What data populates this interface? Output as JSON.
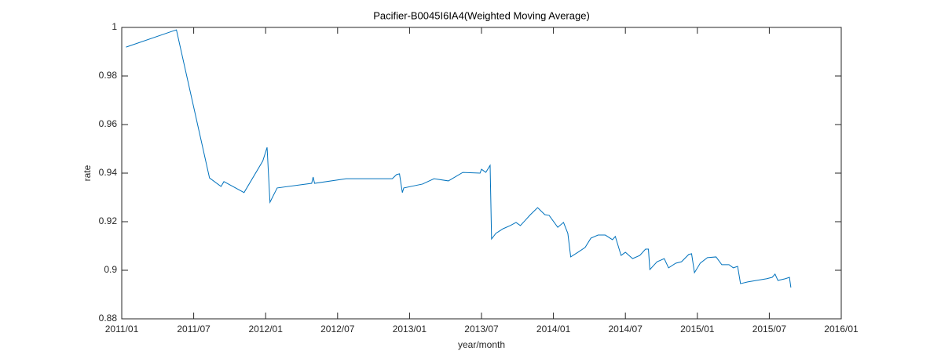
{
  "chart_data": {
    "type": "line",
    "title": "Pacifier-B0045I6IA4(Weighted Moving Average)",
    "x_label": "year/month",
    "y_label": "rate",
    "color": "#0072bd",
    "x": [
      2011.03,
      2011.35,
      2011.38,
      2011.61,
      2011.69,
      2011.71,
      2011.85,
      2011.98,
      2012.01,
      2012.03,
      2012.08,
      2012.32,
      2012.33,
      2012.34,
      2012.56,
      2012.88,
      2012.91,
      2012.93,
      2012.95,
      2012.96,
      2013.09,
      2013.17,
      2013.27,
      2013.37,
      2013.49,
      2013.5,
      2013.53,
      2013.56,
      2013.57,
      2013.6,
      2013.65,
      2013.7,
      2013.74,
      2013.77,
      2013.8,
      2013.84,
      2013.89,
      2013.94,
      2013.97,
      2014.03,
      2014.07,
      2014.1,
      2014.12,
      2014.17,
      2014.22,
      2014.26,
      2014.31,
      2014.36,
      2014.41,
      2014.43,
      2014.47,
      2014.5,
      2014.55,
      2014.6,
      2014.64,
      2014.66,
      2014.67,
      2014.72,
      2014.77,
      2014.8,
      2014.85,
      2014.89,
      2014.94,
      2014.96,
      2014.98,
      2015.02,
      2015.07,
      2015.13,
      2015.17,
      2015.22,
      2015.25,
      2015.28,
      2015.3,
      2015.35,
      2015.41,
      2015.48,
      2015.52,
      2015.54,
      2015.56,
      2015.61,
      2015.64,
      2015.65
    ],
    "values": [
      0.9919,
      0.9984,
      0.999,
      0.938,
      0.9345,
      0.9365,
      0.932,
      0.945,
      0.9506,
      0.928,
      0.9339,
      0.9358,
      0.9384,
      0.9358,
      0.9377,
      0.9377,
      0.9394,
      0.9397,
      0.932,
      0.9339,
      0.9355,
      0.9377,
      0.9368,
      0.9403,
      0.94,
      0.9416,
      0.9403,
      0.9432,
      0.9129,
      0.9152,
      0.9171,
      0.9184,
      0.9197,
      0.9184,
      0.9203,
      0.9229,
      0.9258,
      0.9229,
      0.9226,
      0.9177,
      0.9197,
      0.9152,
      0.9055,
      0.9074,
      0.9094,
      0.9132,
      0.9145,
      0.9145,
      0.9126,
      0.9139,
      0.9061,
      0.9074,
      0.9048,
      0.9061,
      0.9087,
      0.9087,
      0.9003,
      0.9035,
      0.9048,
      0.901,
      0.9029,
      0.9035,
      0.9065,
      0.9068,
      0.899,
      0.9029,
      0.9052,
      0.9055,
      0.9023,
      0.9023,
      0.901,
      0.9016,
      0.8945,
      0.8952,
      0.8958,
      0.8965,
      0.8971,
      0.8984,
      0.8958,
      0.8965,
      0.8971,
      0.8929
    ],
    "xlim": [
      2011,
      2016
    ],
    "xticks": [
      {
        "value": 2011,
        "label": "2011/01"
      },
      {
        "value": 2011.5,
        "label": "2011/07"
      },
      {
        "value": 2012,
        "label": "2012/01"
      },
      {
        "value": 2012.5,
        "label": "2012/07"
      },
      {
        "value": 2013,
        "label": "2013/01"
      },
      {
        "value": 2013.5,
        "label": "2013/07"
      },
      {
        "value": 2014,
        "label": "2014/01"
      },
      {
        "value": 2014.5,
        "label": "2014/07"
      },
      {
        "value": 2015,
        "label": "2015/01"
      },
      {
        "value": 2015.5,
        "label": "2015/07"
      },
      {
        "value": 2016,
        "label": "2016/01"
      }
    ],
    "ylim": [
      0.88,
      1
    ],
    "yticks": [
      0.88,
      0.9,
      0.92,
      0.94,
      0.96,
      0.98,
      1
    ]
  }
}
